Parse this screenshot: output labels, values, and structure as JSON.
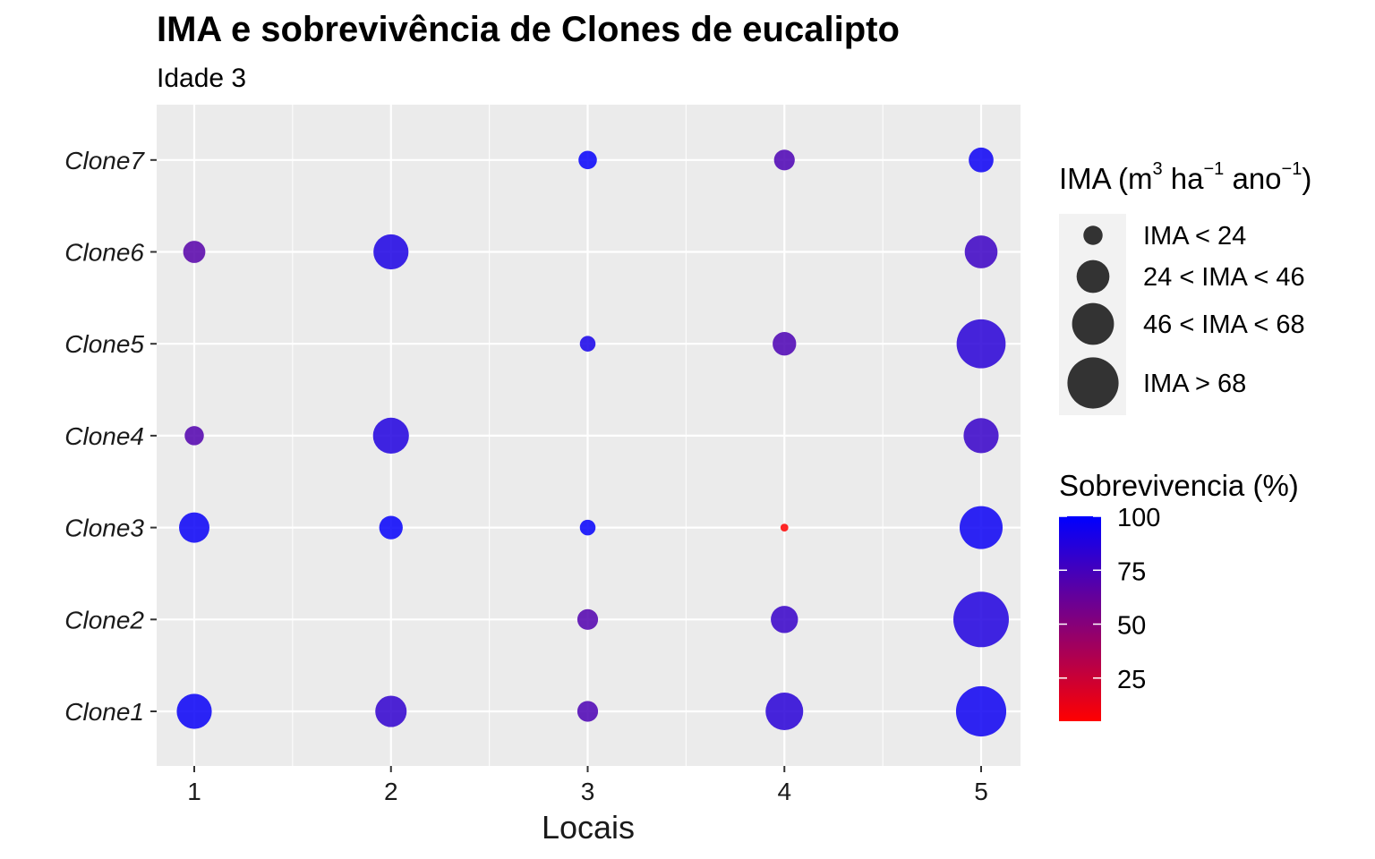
{
  "chart_data": {
    "type": "scatter",
    "title": "IMA e sobrevivência de Clones de eucalipto",
    "subtitle": "Idade 3",
    "xlabel": "Locais",
    "ylabel": "",
    "x_categories": [
      "1",
      "2",
      "3",
      "4",
      "5"
    ],
    "y_categories": [
      "Clone1",
      "Clone2",
      "Clone3",
      "Clone4",
      "Clone5",
      "Clone6",
      "Clone7"
    ],
    "grid": true,
    "points": [
      {
        "x": "1",
        "y": "Clone1",
        "ima": 40,
        "sobrevivencia": 97
      },
      {
        "x": "2",
        "y": "Clone1",
        "ima": 32,
        "sobrevivencia": 82
      },
      {
        "x": "3",
        "y": "Clone1",
        "ima": 14,
        "sobrevivencia": 72
      },
      {
        "x": "4",
        "y": "Clone1",
        "ima": 46,
        "sobrevivencia": 85
      },
      {
        "x": "5",
        "y": "Clone1",
        "ima": 82,
        "sobrevivencia": 95
      },
      {
        "x": "3",
        "y": "Clone2",
        "ima": 14,
        "sobrevivencia": 70
      },
      {
        "x": "4",
        "y": "Clone2",
        "ima": 24,
        "sobrevivencia": 80
      },
      {
        "x": "5",
        "y": "Clone2",
        "ima": 100,
        "sobrevivencia": 88
      },
      {
        "x": "1",
        "y": "Clone3",
        "ima": 30,
        "sobrevivencia": 97
      },
      {
        "x": "2",
        "y": "Clone3",
        "ima": 18,
        "sobrevivencia": 98
      },
      {
        "x": "3",
        "y": "Clone3",
        "ima": 8,
        "sobrevivencia": 99
      },
      {
        "x": "4",
        "y": "Clone3",
        "ima": 2,
        "sobrevivencia": 5
      },
      {
        "x": "5",
        "y": "Clone3",
        "ima": 60,
        "sobrevivencia": 96
      },
      {
        "x": "1",
        "y": "Clone4",
        "ima": 12,
        "sobrevivencia": 70
      },
      {
        "x": "2",
        "y": "Clone4",
        "ima": 42,
        "sobrevivencia": 88
      },
      {
        "x": "5",
        "y": "Clone4",
        "ima": 40,
        "sobrevivencia": 80
      },
      {
        "x": "3",
        "y": "Clone5",
        "ima": 8,
        "sobrevivencia": 92
      },
      {
        "x": "4",
        "y": "Clone5",
        "ima": 18,
        "sobrevivencia": 72
      },
      {
        "x": "5",
        "y": "Clone5",
        "ima": 78,
        "sobrevivencia": 85
      },
      {
        "x": "1",
        "y": "Clone6",
        "ima": 16,
        "sobrevivencia": 68
      },
      {
        "x": "2",
        "y": "Clone6",
        "ima": 40,
        "sobrevivencia": 90
      },
      {
        "x": "5",
        "y": "Clone6",
        "ima": 35,
        "sobrevivencia": 78
      },
      {
        "x": "3",
        "y": "Clone7",
        "ima": 11,
        "sobrevivencia": 98
      },
      {
        "x": "4",
        "y": "Clone7",
        "ima": 14,
        "sobrevivencia": 72
      },
      {
        "x": "5",
        "y": "Clone7",
        "ima": 20,
        "sobrevivencia": 96
      }
    ],
    "size_legend": {
      "title_parts": {
        "base": "IMA (m",
        "sup1": "3",
        "mid1": " ha",
        "sup2": "−1",
        "mid2": " ano",
        "sup3": "−1",
        "end": ")"
      },
      "entries": [
        {
          "label": "IMA < 24",
          "ima": 12
        },
        {
          "label": "24 < IMA < 46",
          "ima": 35
        },
        {
          "label": "46 < IMA < 68",
          "ima": 57
        },
        {
          "label": "IMA > 68",
          "ima": 85
        }
      ]
    },
    "color_legend": {
      "title": "Sobrevivencia (%)",
      "range": [
        5,
        100
      ],
      "ticks": [
        100,
        75,
        50,
        25
      ],
      "tick_labels": [
        "100",
        "75",
        "50",
        "25"
      ],
      "low_color": "#ff0000",
      "high_color": "#0000ff"
    },
    "colors": {
      "panel_background": "#ebebeb",
      "grid": "#ffffff",
      "legend_key_background": "#f2f2f2",
      "size_key_fill": "#333333"
    }
  }
}
